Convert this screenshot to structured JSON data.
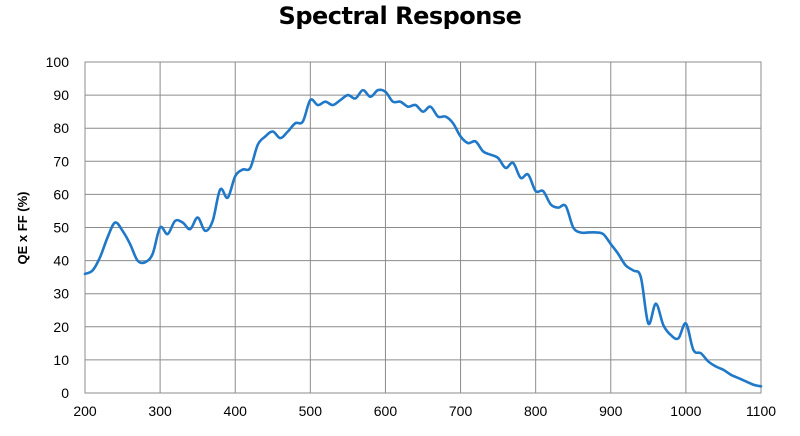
{
  "chart_data": {
    "type": "line",
    "title": "Spectral Response",
    "xlabel": "",
    "ylabel": "QE x FF (%)",
    "xlim": [
      200,
      1100
    ],
    "ylim": [
      0,
      100
    ],
    "x_ticks": [
      200,
      300,
      400,
      500,
      600,
      700,
      800,
      900,
      1000,
      1100
    ],
    "y_ticks": [
      0,
      10,
      20,
      30,
      40,
      50,
      60,
      70,
      80,
      90,
      100
    ],
    "grid": true,
    "legend": "none",
    "line_color": "#1f78c8",
    "series": [
      {
        "name": "",
        "x": [
          200,
          210,
          220,
          230,
          240,
          250,
          260,
          270,
          280,
          290,
          300,
          310,
          320,
          330,
          340,
          350,
          360,
          370,
          380,
          390,
          400,
          410,
          420,
          430,
          440,
          450,
          460,
          470,
          480,
          490,
          500,
          510,
          520,
          530,
          540,
          550,
          560,
          570,
          580,
          590,
          600,
          610,
          620,
          630,
          640,
          650,
          660,
          670,
          680,
          690,
          700,
          710,
          720,
          730,
          740,
          750,
          760,
          770,
          780,
          790,
          800,
          810,
          820,
          830,
          840,
          850,
          860,
          870,
          880,
          890,
          900,
          910,
          920,
          930,
          940,
          950,
          960,
          970,
          980,
          990,
          1000,
          1010,
          1020,
          1030,
          1040,
          1050,
          1060,
          1070,
          1080,
          1090,
          1100
        ],
        "y": [
          36,
          37,
          41,
          47,
          51.5,
          49,
          45,
          40,
          39.5,
          42,
          50,
          48,
          52,
          51.5,
          49.5,
          53,
          49,
          52,
          61.5,
          59,
          65.5,
          67.5,
          68,
          75,
          77.5,
          79,
          77,
          79,
          81.5,
          82,
          88.5,
          87,
          88,
          87,
          88.5,
          90,
          89,
          91.5,
          89.5,
          91.5,
          91,
          88,
          88,
          86.5,
          87,
          85,
          86.5,
          83.5,
          83.5,
          81.5,
          77.5,
          75.5,
          76,
          73,
          72,
          71,
          68,
          69.5,
          65,
          66,
          61,
          61,
          57,
          56,
          56.5,
          50,
          48.5,
          48.5,
          48.5,
          48,
          45,
          42,
          38.5,
          37,
          35,
          21,
          27,
          20.5,
          17.5,
          16.5,
          21,
          13,
          12,
          9.5,
          8,
          7,
          5.5,
          4.5,
          3.5,
          2.5,
          2
        ]
      }
    ]
  }
}
